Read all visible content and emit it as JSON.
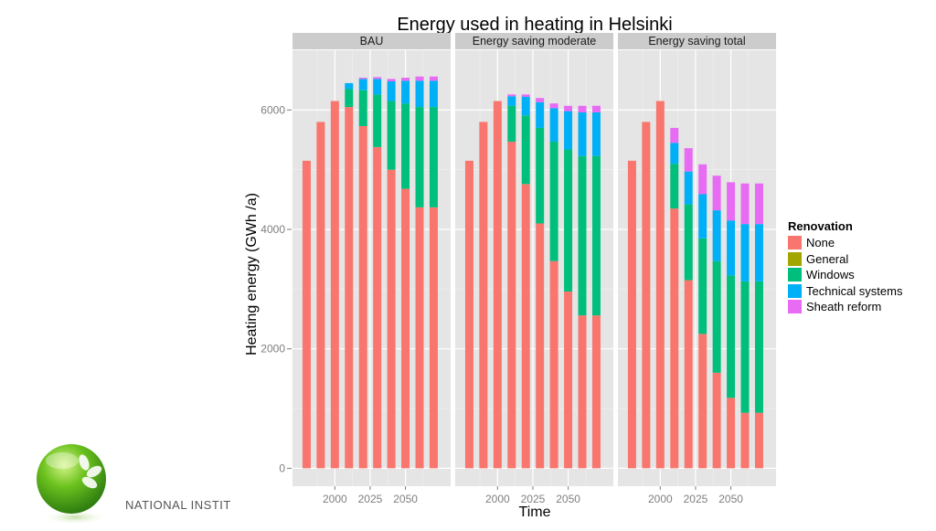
{
  "chart_data": {
    "type": "bar",
    "stacked": true,
    "title": "Energy used in heating in Helsinki",
    "xlabel": "Time",
    "ylabel": "Heating energy (GWh /a)",
    "ylim": [
      -300,
      7000
    ],
    "y_ticks": [
      0,
      2000,
      4000,
      6000
    ],
    "x_ticks": [
      2000,
      2025,
      2050
    ],
    "xlim": [
      1970,
      2082
    ],
    "x": [
      1980,
      1990,
      2000,
      2010,
      2020,
      2025,
      2030,
      2035,
      2040,
      2045,
      2050,
      2055,
      2060,
      2065,
      2070
    ],
    "grid": true,
    "legend_title": "Renovation",
    "legend_position": "right",
    "categories": [
      "None",
      "General",
      "Windows",
      "Technical systems",
      "Sheath reform"
    ],
    "colors": {
      "None": "#F8766D",
      "General": "#A3A500",
      "Windows": "#00BF7D",
      "Technical systems": "#00B0F6",
      "Sheath reform": "#E76BF3"
    },
    "panels": [
      {
        "label": "BAU",
        "x": [
          1980,
          1990,
          2000,
          2010,
          2020,
          2030,
          2040,
          2050,
          2060,
          2070
        ],
        "series": {
          "None": [
            5150,
            5800,
            6150,
            6050,
            5730,
            5380,
            5000,
            4680,
            4370,
            4370
          ],
          "General": [
            0,
            0,
            0,
            0,
            0,
            0,
            0,
            0,
            0,
            0
          ],
          "Windows": [
            0,
            0,
            0,
            300,
            600,
            880,
            1150,
            1430,
            1680,
            1680
          ],
          "Technical systems": [
            0,
            0,
            0,
            100,
            190,
            260,
            330,
            380,
            440,
            440
          ],
          "Sheath reform": [
            0,
            0,
            0,
            0,
            20,
            30,
            40,
            50,
            70,
            70
          ]
        }
      },
      {
        "label": "Energy saving moderate",
        "x": [
          1980,
          1990,
          2000,
          2010,
          2020,
          2030,
          2040,
          2050,
          2060,
          2070
        ],
        "series": {
          "None": [
            5150,
            5800,
            6150,
            5470,
            4760,
            4100,
            3470,
            2960,
            2560,
            2560
          ],
          "General": [
            0,
            0,
            0,
            0,
            0,
            0,
            0,
            0,
            0,
            0
          ],
          "Windows": [
            0,
            0,
            0,
            600,
            1150,
            1600,
            2000,
            2380,
            2670,
            2670
          ],
          "Technical systems": [
            0,
            0,
            0,
            160,
            310,
            430,
            560,
            640,
            730,
            730
          ],
          "Sheath reform": [
            0,
            0,
            0,
            30,
            40,
            70,
            80,
            90,
            110,
            110
          ]
        }
      },
      {
        "label": "Energy saving total",
        "x": [
          1980,
          1990,
          2000,
          2010,
          2020,
          2030,
          2040,
          2050,
          2060,
          2070
        ],
        "series": {
          "None": [
            5150,
            5800,
            6150,
            4350,
            3150,
            2250,
            1600,
            1180,
            930,
            930
          ],
          "General": [
            0,
            0,
            0,
            0,
            0,
            0,
            0,
            0,
            0,
            0
          ],
          "Windows": [
            0,
            0,
            0,
            750,
            1270,
            1600,
            1870,
            2050,
            2200,
            2200
          ],
          "Technical systems": [
            0,
            0,
            0,
            350,
            550,
            740,
            850,
            920,
            960,
            960
          ],
          "Sheath reform": [
            0,
            0,
            0,
            250,
            390,
            500,
            580,
            640,
            680,
            680
          ]
        }
      }
    ]
  },
  "logo_text": "NATIONAL INSTIT"
}
